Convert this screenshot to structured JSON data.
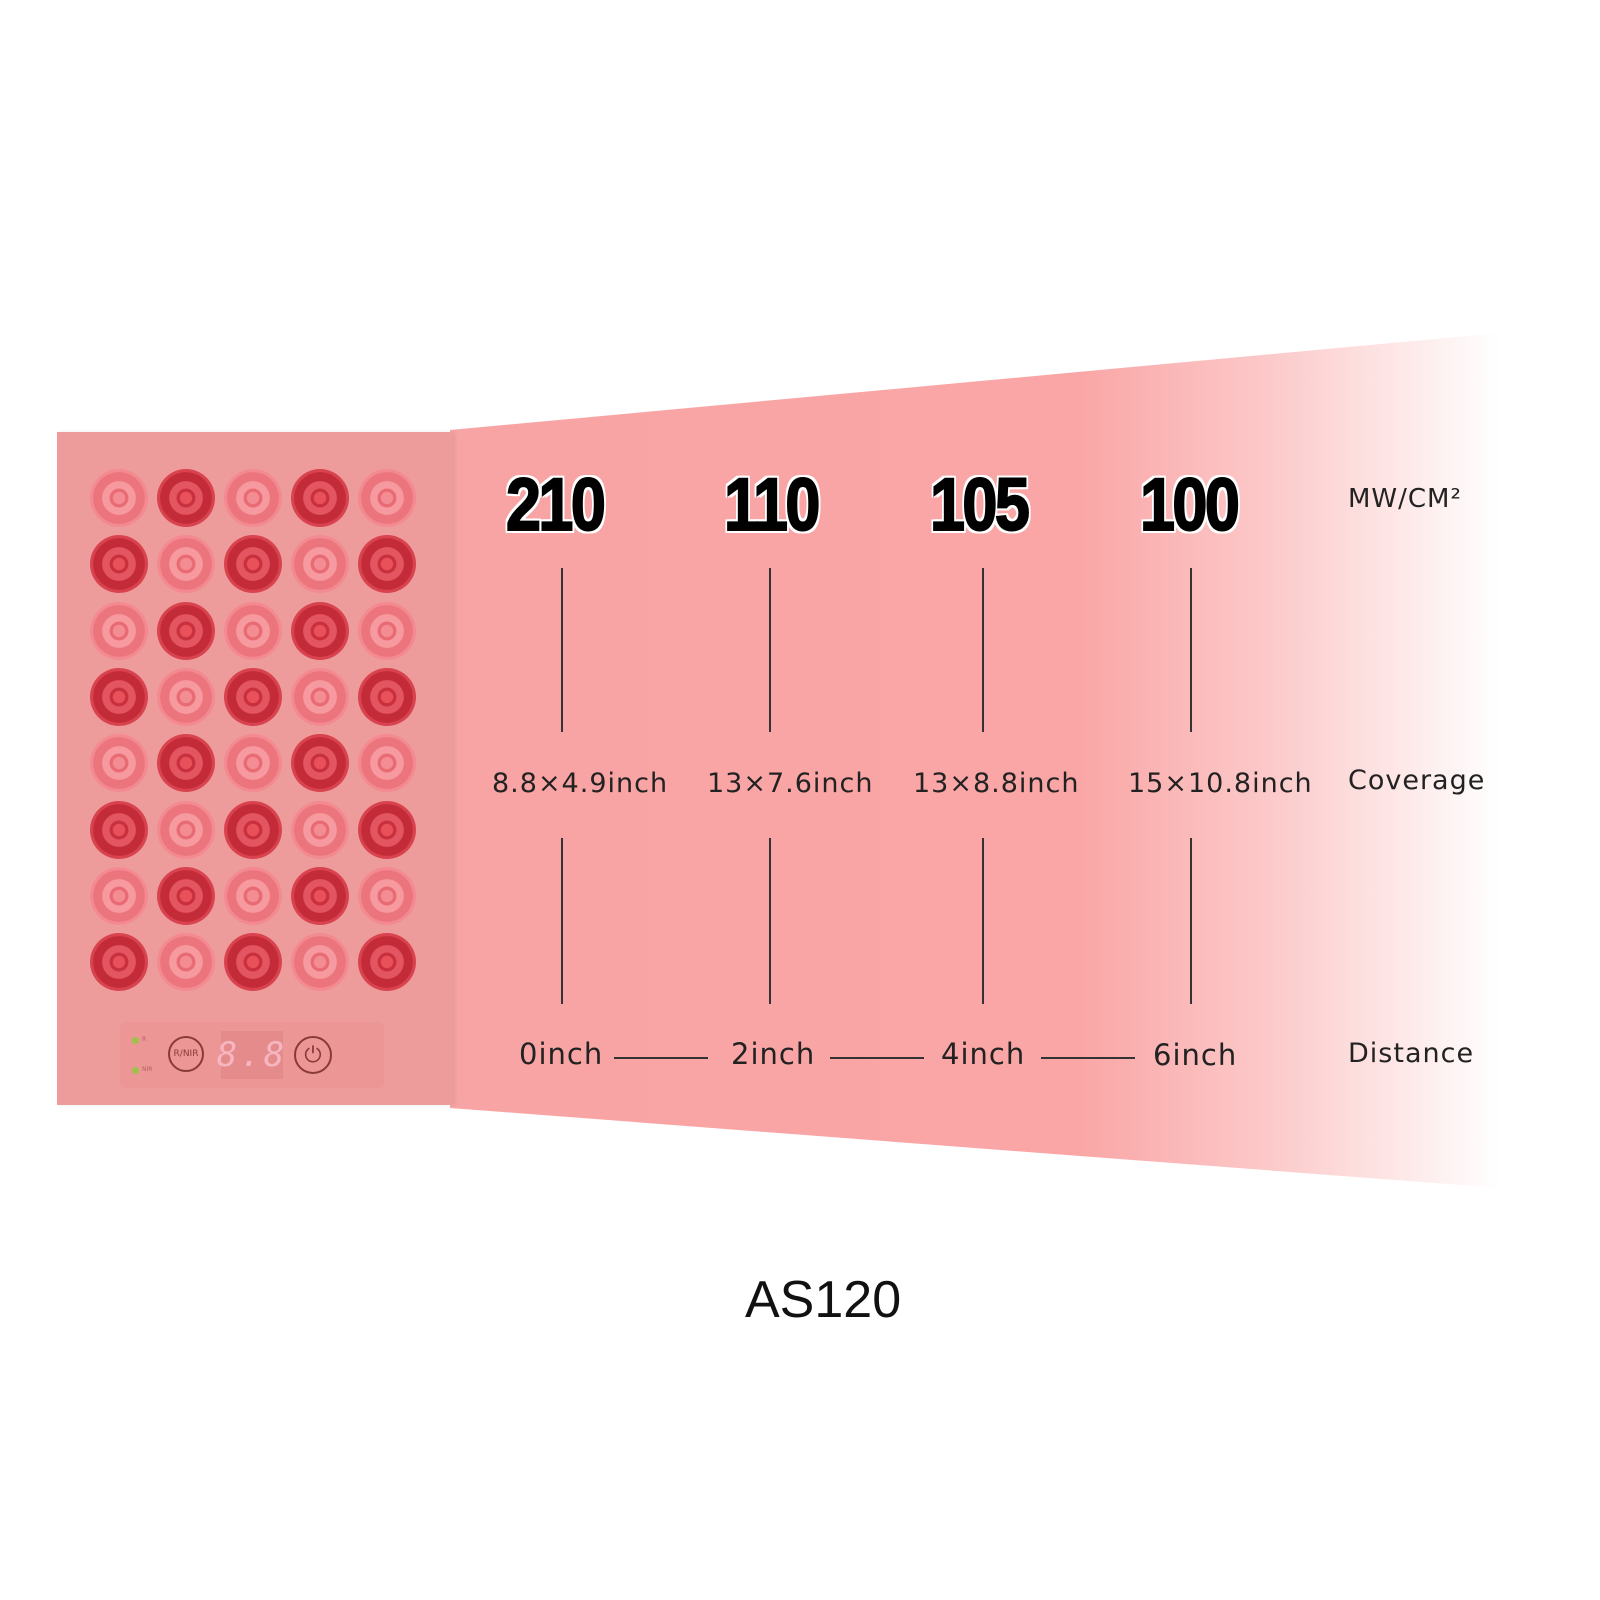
{
  "colors": {
    "beam": "#f9a6a6",
    "panel": "#ee9b9b",
    "led_dark": "#d8434f",
    "led_light": "#f48a91",
    "indicator": "#9cc24a"
  },
  "device": {
    "led_rows": 8,
    "led_cols": 5,
    "indicators": [
      "R",
      "NIR"
    ],
    "mode_button": "R/NIR",
    "display": "8.8",
    "power_icon": "power-icon"
  },
  "irradiance": {
    "values": [
      "210",
      "110",
      "105",
      "100"
    ],
    "unit": "MW/CM²"
  },
  "coverage": {
    "values": [
      "8.8×4.9inch",
      "13×7.6inch",
      "13×8.8inch",
      "15×10.8inch"
    ],
    "label": "Coverage"
  },
  "distance": {
    "values": [
      "0inch",
      "2inch",
      "4inch",
      "6inch"
    ],
    "label": "Distance"
  },
  "model": "AS120"
}
